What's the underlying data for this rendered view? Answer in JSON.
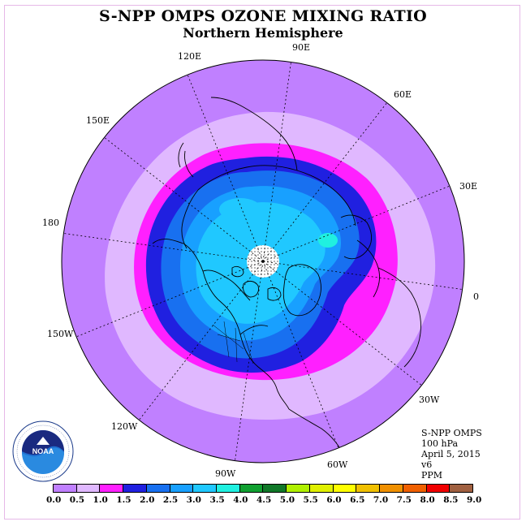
{
  "title": "S-NPP OMPS OZONE MIXING RATIO",
  "subtitle": "Northern Hemisphere",
  "longitude_labels": {
    "e90": "90E",
    "e120": "120E",
    "e60": "60E",
    "e150": "150E",
    "e30": "30E",
    "d180": "180",
    "zero": "0",
    "w150": "150W",
    "w30": "30W",
    "w120": "120W",
    "w60": "60W",
    "w90": "90W"
  },
  "info": {
    "instrument": "S-NPP OMPS",
    "level": "100 hPa",
    "date": "April 5, 2015",
    "version": "v6",
    "units": "PPM"
  },
  "logo": {
    "text": "NOAA",
    "ring_text": "NATIONAL OCEANIC AND ATMOSPHERIC ADMINISTRATION · U.S. DEPARTMENT OF COMMERCE"
  },
  "colorbar": {
    "ticks": [
      "0.0",
      "0.5",
      "1.0",
      "1.5",
      "2.0",
      "2.5",
      "3.0",
      "3.5",
      "4.0",
      "4.5",
      "5.0",
      "5.5",
      "6.0",
      "6.5",
      "7.0",
      "7.5",
      "8.0",
      "8.5",
      "9.0"
    ],
    "colors": [
      "#c080ff",
      "#e0b8ff",
      "#ff20ff",
      "#2020e0",
      "#1870f0",
      "#18a0ff",
      "#20c8ff",
      "#20f0e0",
      "#10a030",
      "#107828",
      "#b0f000",
      "#e0f000",
      "#ffff00",
      "#f0c000",
      "#f09000",
      "#f06000",
      "#f00000",
      "#a06040"
    ]
  },
  "map_colors": {
    "outer": "#c080ff",
    "band_0_5": "#e0b8ff",
    "band_1_0": "#ff20ff",
    "band_1_5": "#2020e0",
    "band_2_0": "#1870f0",
    "band_2_5": "#18a0ff",
    "band_3_0": "#20c8ff",
    "band_3_5": "#20f0e0",
    "pole": "#ffffff"
  },
  "map": {
    "projection": "north polar stereographic",
    "meridian_step_degrees": 30
  }
}
